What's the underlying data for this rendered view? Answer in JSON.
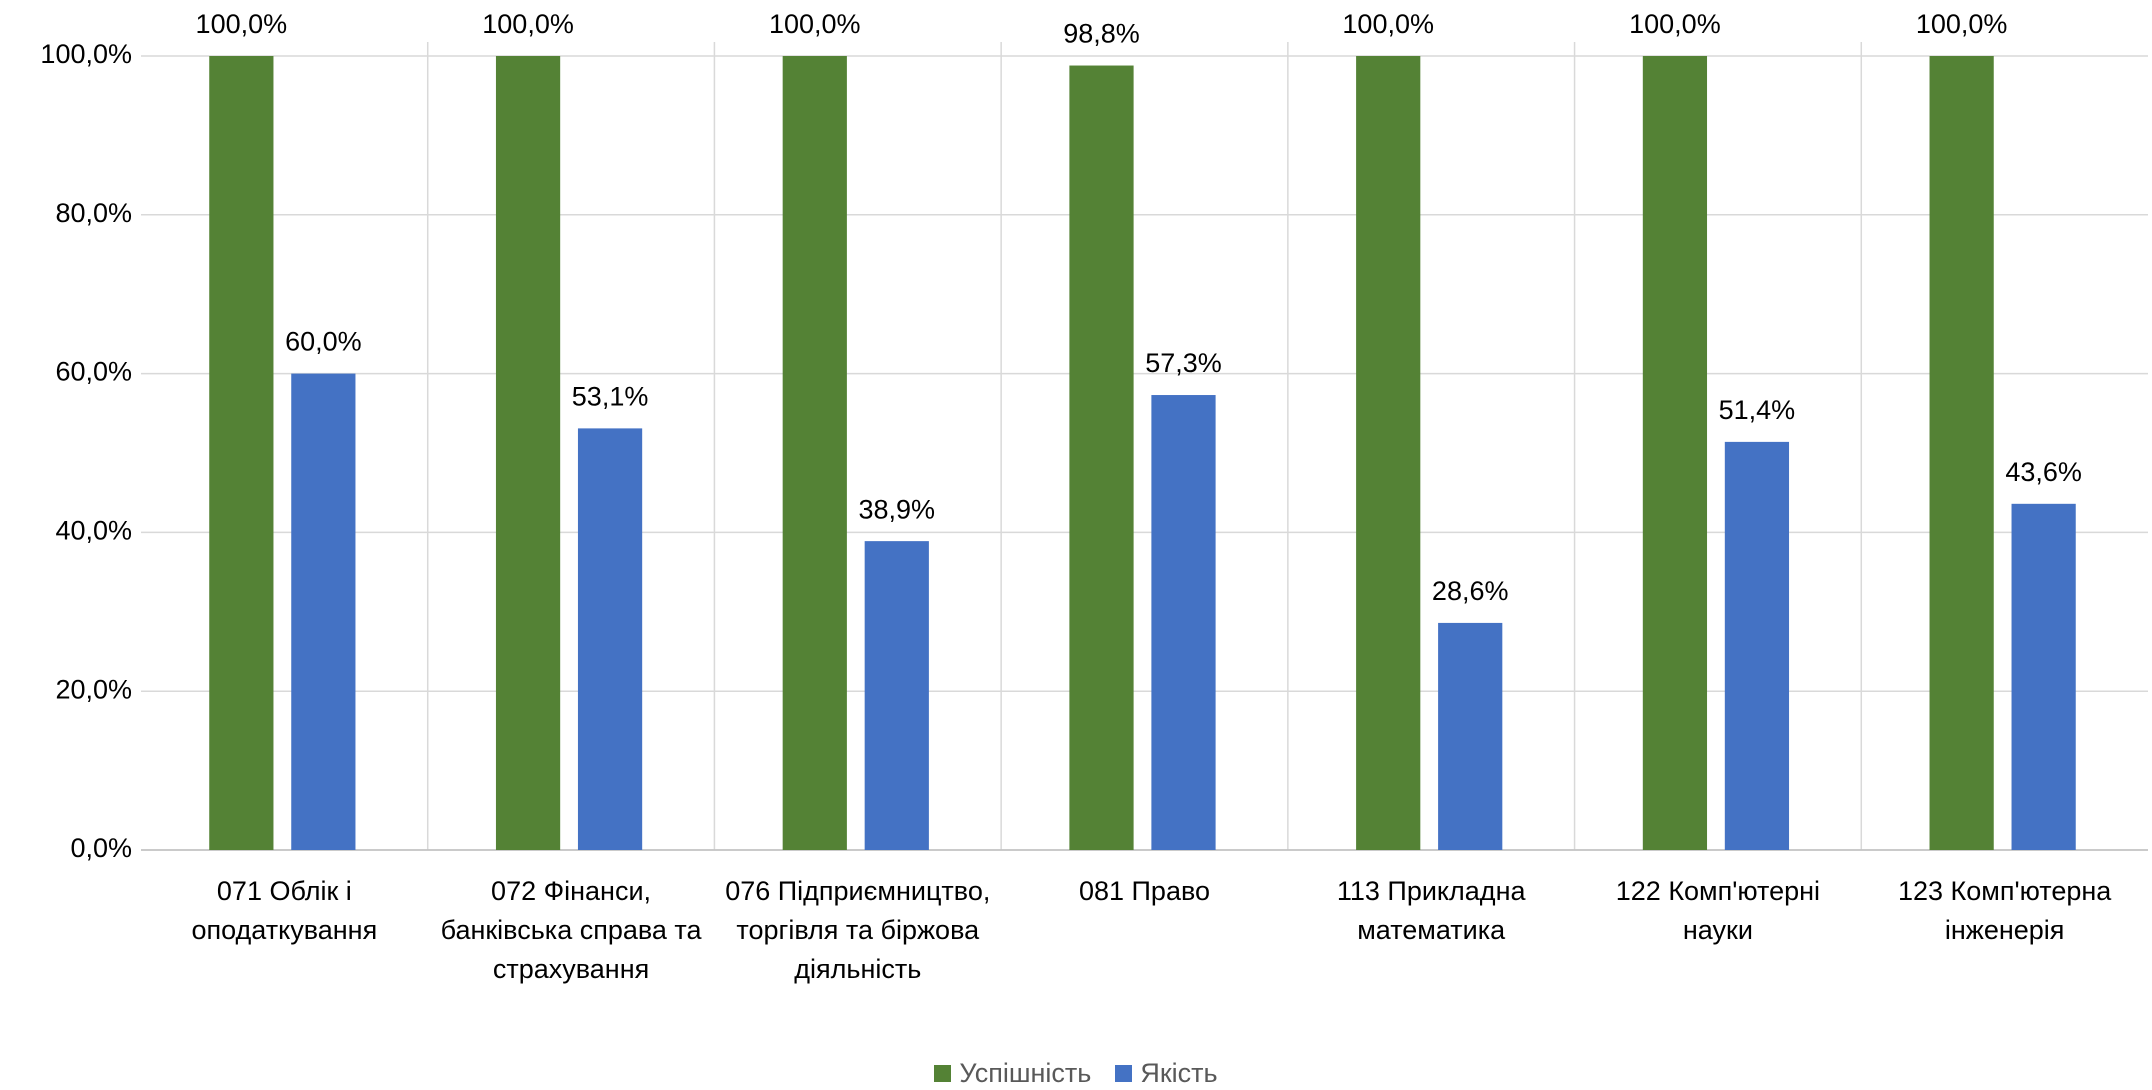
{
  "chart_data": {
    "type": "bar",
    "categories": [
      "071 Облік і оподаткування",
      "072 Фінанси, банківська справа та страхування",
      "076 Підприємництво, торгівля та біржова діяльність",
      "081 Право",
      "113 Прикладна математика",
      "122 Комп'ютерні науки",
      "123 Комп'ютерна інженерія"
    ],
    "series": [
      {
        "name": "Успішність",
        "color": "#548235",
        "values": [
          100,
          100,
          100,
          98.8,
          100,
          100,
          100
        ],
        "value_labels": [
          "100,0%",
          "100,0%",
          "100,0%",
          "98,8%",
          "100,0%",
          "100,0%",
          "100,0%"
        ]
      },
      {
        "name": "Якість",
        "color": "#4472c4",
        "values": [
          60,
          53.1,
          38.9,
          57.3,
          28.6,
          51.4,
          43.6
        ],
        "value_labels": [
          "60,0%",
          "53,1%",
          "38,9%",
          "57,3%",
          "28,6%",
          "51,4%",
          "43,6%"
        ]
      }
    ],
    "ylim": [
      0,
      100
    ],
    "yticks": [
      {
        "value": 0,
        "label": "0,0%"
      },
      {
        "value": 20,
        "label": "20,0%"
      },
      {
        "value": 40,
        "label": "40,0%"
      },
      {
        "value": 60,
        "label": "60,0%"
      },
      {
        "value": 80,
        "label": "80,0%"
      },
      {
        "value": 100,
        "label": "100,0%"
      }
    ],
    "grid": true,
    "legend": "bottom"
  }
}
